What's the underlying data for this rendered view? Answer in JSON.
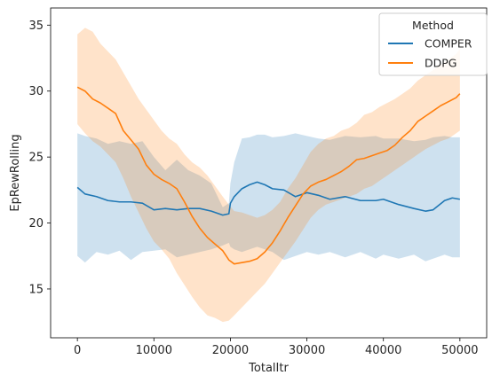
{
  "chart_data": {
    "type": "line",
    "title": "",
    "xlabel": "TotalItr",
    "ylabel": "EpRewRolling",
    "xlim": [
      -3500,
      53500
    ],
    "ylim": [
      11.3,
      36.3
    ],
    "xticks": [
      0,
      10000,
      20000,
      30000,
      40000,
      50000
    ],
    "yticks": [
      15,
      20,
      25,
      30,
      35
    ],
    "grid": false,
    "legend": {
      "title": "Method",
      "placement": "top-right"
    },
    "series": [
      {
        "name": "COMPER",
        "color": "#1f77b4",
        "x": [
          0,
          1000,
          2500,
          4000,
          5500,
          7000,
          8500,
          10000,
          11500,
          13000,
          14500,
          16000,
          17500,
          19000,
          19800,
          20000,
          20500,
          21500,
          22500,
          23500,
          24500,
          25500,
          27000,
          28500,
          30000,
          31500,
          33000,
          35000,
          37000,
          39000,
          40000,
          42000,
          44000,
          45500,
          46500,
          48000,
          49000,
          50000
        ],
        "values": [
          22.7,
          22.2,
          22.0,
          21.7,
          21.6,
          21.6,
          21.5,
          21.0,
          21.1,
          21.0,
          21.1,
          21.1,
          20.9,
          20.6,
          20.7,
          21.5,
          22.0,
          22.6,
          22.9,
          23.1,
          22.9,
          22.6,
          22.5,
          22.0,
          22.3,
          22.1,
          21.8,
          22.0,
          21.7,
          21.7,
          21.8,
          21.4,
          21.1,
          20.9,
          21.0,
          21.7,
          21.9,
          21.8
        ],
        "upper": [
          26.8,
          26.6,
          26.4,
          26.0,
          26.2,
          26.0,
          26.2,
          25.0,
          24.0,
          24.8,
          24.0,
          23.6,
          23.0,
          21.2,
          21.5,
          23.0,
          24.6,
          26.4,
          26.5,
          26.7,
          26.7,
          26.5,
          26.6,
          26.8,
          26.6,
          26.4,
          26.3,
          26.6,
          26.5,
          26.6,
          26.4,
          26.4,
          26.2,
          26.3,
          26.5,
          26.6,
          26.5,
          26.5
        ],
        "lower": [
          17.5,
          17.0,
          17.8,
          17.6,
          17.9,
          17.2,
          17.8,
          17.9,
          18.0,
          17.4,
          17.6,
          17.8,
          18.0,
          18.3,
          18.5,
          18.2,
          18.0,
          17.8,
          18.0,
          18.2,
          18.0,
          17.8,
          17.2,
          17.5,
          17.8,
          17.6,
          17.8,
          17.4,
          17.8,
          17.3,
          17.6,
          17.3,
          17.6,
          17.1,
          17.3,
          17.6,
          17.4,
          17.4
        ]
      },
      {
        "name": "DDPG",
        "color": "#ff7f0e",
        "x": [
          0,
          1000,
          2000,
          3000,
          4000,
          5000,
          6000,
          7000,
          8000,
          9000,
          10000,
          11000,
          12000,
          13000,
          14000,
          15000,
          16000,
          17000,
          18000,
          19000,
          19800,
          20500,
          21500,
          22500,
          23500,
          24500,
          25500,
          26500,
          27500,
          28500,
          29500,
          30500,
          31500,
          32500,
          33500,
          34500,
          35500,
          36500,
          37500,
          38500,
          39500,
          40500,
          41500,
          42500,
          43500,
          44500,
          45500,
          46500,
          47500,
          48500,
          49500,
          50000
        ],
        "values": [
          30.3,
          30.0,
          29.4,
          29.1,
          28.7,
          28.3,
          27.0,
          26.3,
          25.6,
          24.4,
          23.7,
          23.3,
          23.0,
          22.6,
          21.6,
          20.5,
          19.6,
          18.9,
          18.4,
          17.9,
          17.2,
          16.9,
          17.0,
          17.1,
          17.3,
          17.8,
          18.5,
          19.4,
          20.4,
          21.3,
          22.2,
          22.8,
          23.1,
          23.3,
          23.6,
          23.9,
          24.3,
          24.8,
          24.9,
          25.1,
          25.3,
          25.5,
          25.9,
          26.5,
          27.0,
          27.7,
          28.1,
          28.5,
          28.9,
          29.2,
          29.5,
          29.8
        ],
        "upper": [
          34.3,
          34.8,
          34.5,
          33.6,
          33.0,
          32.4,
          31.4,
          30.4,
          29.4,
          28.6,
          27.8,
          27.0,
          26.4,
          26.0,
          25.2,
          24.6,
          24.2,
          23.6,
          22.8,
          22.0,
          21.4,
          20.9,
          20.8,
          20.6,
          20.4,
          20.6,
          21.0,
          21.6,
          22.6,
          23.4,
          24.4,
          25.4,
          26.0,
          26.4,
          26.6,
          27.0,
          27.2,
          27.6,
          28.2,
          28.4,
          28.8,
          29.1,
          29.4,
          29.8,
          30.2,
          30.8,
          31.2,
          31.6,
          32.0,
          32.4,
          32.8,
          33.2
        ],
        "lower": [
          27.5,
          26.8,
          26.2,
          25.8,
          25.2,
          24.6,
          23.4,
          22.0,
          20.8,
          19.6,
          18.6,
          18.0,
          17.3,
          16.2,
          15.3,
          14.4,
          13.6,
          13.0,
          12.8,
          12.5,
          12.6,
          13.0,
          13.6,
          14.2,
          14.8,
          15.4,
          16.2,
          17.0,
          17.8,
          18.6,
          19.5,
          20.4,
          21.0,
          21.4,
          21.6,
          21.8,
          22.0,
          22.2,
          22.6,
          22.8,
          23.2,
          23.6,
          24.0,
          24.4,
          24.8,
          25.2,
          25.6,
          25.9,
          26.2,
          26.4,
          26.8,
          27.0
        ]
      }
    ]
  }
}
